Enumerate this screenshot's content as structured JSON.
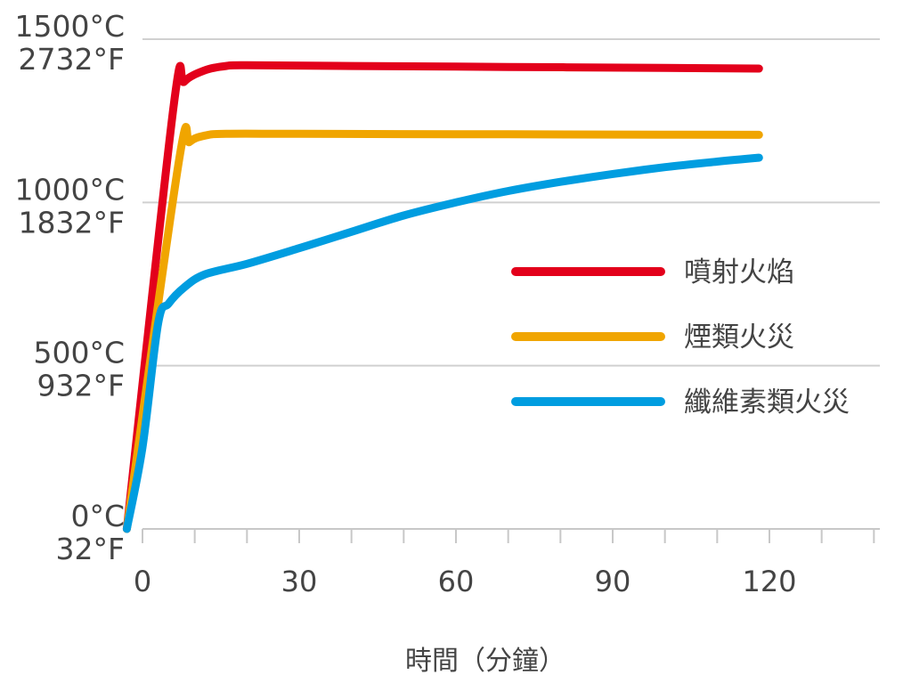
{
  "chart_data": {
    "type": "line",
    "xlabel": "時間（分鐘）",
    "ylabel": "",
    "xlim": [
      0,
      140
    ],
    "ylim": [
      0,
      1500
    ],
    "x_ticks": [
      0,
      30,
      60,
      90,
      120
    ],
    "x_tick_labels": [
      "0",
      "30",
      "60",
      "90",
      "120"
    ],
    "x_minor_ticks": [
      0,
      10,
      20,
      30,
      40,
      50,
      60,
      70,
      80,
      90,
      100,
      110,
      120,
      130,
      140
    ],
    "y_ticks": [
      {
        "value": 0,
        "celsius": "0°C",
        "fahrenheit": "32°F"
      },
      {
        "value": 500,
        "celsius": "500°C",
        "fahrenheit": "932°F"
      },
      {
        "value": 1000,
        "celsius": "1000°C",
        "fahrenheit": "1832°F"
      },
      {
        "value": 1500,
        "celsius": "1500°C",
        "fahrenheit": "2732°F"
      }
    ],
    "grid": "horizontal",
    "legend_position": "right",
    "series": [
      {
        "name": "噴射火焰",
        "color": "#e3001b",
        "points": [
          [
            -3,
            0
          ],
          [
            6,
            1300
          ],
          [
            8,
            1370
          ],
          [
            12,
            1405
          ],
          [
            16,
            1418
          ],
          [
            20,
            1420
          ],
          [
            40,
            1418
          ],
          [
            70,
            1415
          ],
          [
            100,
            1412
          ],
          [
            118,
            1410
          ]
        ]
      },
      {
        "name": "煙類火災",
        "color": "#f0a500",
        "points": [
          [
            -3,
            0
          ],
          [
            7,
            1130
          ],
          [
            9,
            1185
          ],
          [
            12,
            1205
          ],
          [
            16,
            1210
          ],
          [
            30,
            1210
          ],
          [
            60,
            1209
          ],
          [
            90,
            1208
          ],
          [
            118,
            1207
          ]
        ]
      },
      {
        "name": "纖維素類火災",
        "color": "#009de0",
        "points": [
          [
            -3,
            0
          ],
          [
            0,
            250
          ],
          [
            3,
            630
          ],
          [
            5,
            690
          ],
          [
            8,
            740
          ],
          [
            12,
            780
          ],
          [
            20,
            812
          ],
          [
            30,
            860
          ],
          [
            40,
            910
          ],
          [
            50,
            960
          ],
          [
            60,
            1000
          ],
          [
            70,
            1035
          ],
          [
            80,
            1063
          ],
          [
            90,
            1087
          ],
          [
            100,
            1108
          ],
          [
            110,
            1125
          ],
          [
            118,
            1137
          ]
        ]
      }
    ]
  }
}
